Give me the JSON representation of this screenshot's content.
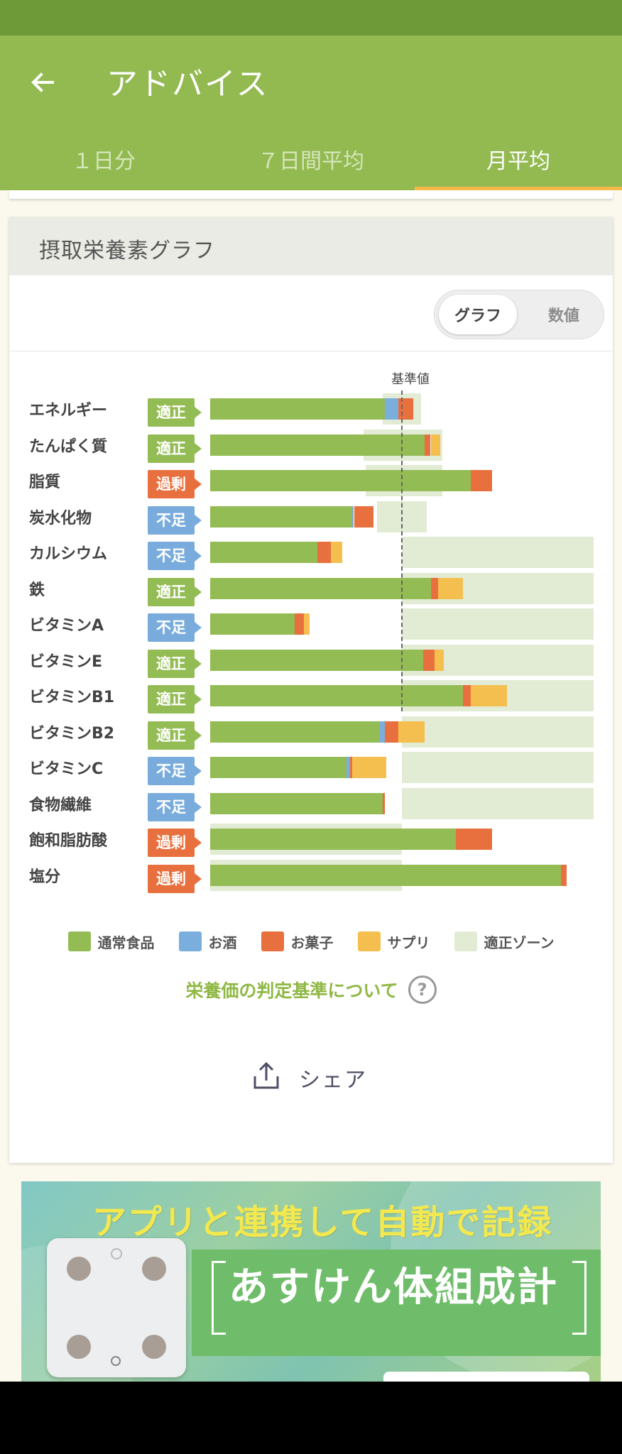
{
  "app_bar": {
    "title": "アドバイス",
    "back_icon": "arrow-left-icon"
  },
  "tabs": [
    {
      "label": "１日分",
      "active": false
    },
    {
      "label": "７日間平均",
      "active": false
    },
    {
      "label": "月平均",
      "active": true
    }
  ],
  "card": {
    "title": "摂取栄養素グラフ",
    "toggle": {
      "graph_label": "グラフ",
      "value_label": "数値",
      "selected": "graph"
    }
  },
  "chart_data": {
    "type": "bar",
    "orientation": "horizontal-stacked",
    "reference_label": "基準値",
    "reference_value": 100,
    "xlim": [
      0,
      200
    ],
    "colors": {
      "normal_food": "#94bc55",
      "alcohol": "#7aaedc",
      "snacks": "#e8703e",
      "supplement": "#f5bf4f",
      "zone": "#e2ebd4",
      "badge_ok": "#94bc55",
      "badge_low": "#79acdc",
      "badge_high": "#e8703e"
    },
    "series_legend": [
      {
        "key": "normal_food",
        "name": "通常食品"
      },
      {
        "key": "alcohol",
        "name": "お酒"
      },
      {
        "key": "snacks",
        "name": "お菓子"
      },
      {
        "key": "supplement",
        "name": "サプリ"
      },
      {
        "key": "zone",
        "name": "適正ゾーン"
      }
    ],
    "rows": [
      {
        "name": "エネルギー",
        "status": "適正",
        "status_type": "ok",
        "zone": [
          90,
          110
        ],
        "normal_food": 91,
        "alcohol": 7,
        "snacks": 8,
        "supplement": 0
      },
      {
        "name": "たんぱく質",
        "status": "適正",
        "status_type": "ok",
        "zone": [
          80,
          121
        ],
        "normal_food": 112,
        "alcohol": 0,
        "snacks": 3,
        "supplement": 5
      },
      {
        "name": "脂質",
        "status": "過剰",
        "status_type": "high",
        "zone": [
          81,
          121
        ],
        "normal_food": 136,
        "alcohol": 0,
        "snacks": 11,
        "supplement": 0
      },
      {
        "name": "炭水化物",
        "status": "不足",
        "status_type": "low",
        "zone": [
          87,
          113
        ],
        "normal_food": 74,
        "alcohol": 1,
        "snacks": 10,
        "supplement": 0
      },
      {
        "name": "カルシウム",
        "status": "不足",
        "status_type": "low",
        "zone": [
          100,
          200
        ],
        "normal_food": 56,
        "alcohol": 0,
        "snacks": 7,
        "supplement": 6
      },
      {
        "name": "鉄",
        "status": "適正",
        "status_type": "ok",
        "zone": [
          100,
          200
        ],
        "normal_food": 115,
        "alcohol": 0,
        "snacks": 4,
        "supplement": 13
      },
      {
        "name": "ビタミンA",
        "status": "不足",
        "status_type": "low",
        "zone": [
          100,
          200
        ],
        "normal_food": 44,
        "alcohol": 0,
        "snacks": 5,
        "supplement": 3
      },
      {
        "name": "ビタミンE",
        "status": "適正",
        "status_type": "ok",
        "zone": [
          100,
          200
        ],
        "normal_food": 111,
        "alcohol": 0,
        "snacks": 6,
        "supplement": 5
      },
      {
        "name": "ビタミンB1",
        "status": "適正",
        "status_type": "ok",
        "zone": [
          100,
          200
        ],
        "normal_food": 132,
        "alcohol": 0,
        "snacks": 4,
        "supplement": 19
      },
      {
        "name": "ビタミンB2",
        "status": "適正",
        "status_type": "ok",
        "zone": [
          100,
          200
        ],
        "normal_food": 88,
        "alcohol": 3,
        "snacks": 7,
        "supplement": 14
      },
      {
        "name": "ビタミンC",
        "status": "不足",
        "status_type": "low",
        "zone": [
          100,
          200
        ],
        "normal_food": 71,
        "alcohol": 2,
        "snacks": 1,
        "supplement": 18
      },
      {
        "name": "食物繊維",
        "status": "不足",
        "status_type": "low",
        "zone": [
          100,
          200
        ],
        "normal_food": 90,
        "alcohol": 0,
        "snacks": 1,
        "supplement": 0
      },
      {
        "name": "飽和脂肪酸",
        "status": "過剰",
        "status_type": "high",
        "zone": [
          0,
          100
        ],
        "normal_food": 128,
        "alcohol": 0,
        "snacks": 19,
        "supplement": 0
      },
      {
        "name": "塩分",
        "status": "過剰",
        "status_type": "high",
        "zone": [
          0,
          100
        ],
        "normal_food": 183,
        "alcohol": 0,
        "snacks": 3,
        "supplement": 0
      }
    ]
  },
  "criteria_link": {
    "label": "栄養価の判定基準について",
    "help_icon_label": "?"
  },
  "share": {
    "label": "シェア",
    "icon": "share-icon"
  },
  "banner": {
    "headline": "アプリと連携して自動で記録",
    "product": "あすけん体組成計"
  }
}
